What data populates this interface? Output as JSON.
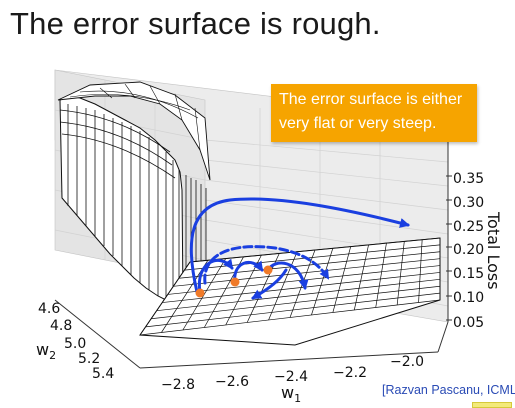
{
  "title": "The error surface is rough.",
  "callout": {
    "line1": "The error surface is either",
    "line2": "very flat or very steep."
  },
  "citation": "[Razvan Pascanu, ICML",
  "plot": {
    "z_axis": {
      "label": "Total Loss",
      "ticks": [
        "0.35",
        "0.30",
        "0.25",
        "0.20",
        "0.15",
        "0.10",
        "0.05"
      ]
    },
    "w1_axis": {
      "label": "w",
      "subscript": "1",
      "ticks": [
        "−2.8",
        "−2.6",
        "−2.4",
        "−2.2",
        "−2.0"
      ]
    },
    "w2_axis": {
      "label": "w",
      "subscript": "2",
      "ticks": [
        "4.6",
        "4.8",
        "5.0",
        "5.2",
        "5.4"
      ]
    },
    "colors": {
      "trajectory": "#1a3fe0",
      "points": "#f07a28",
      "callout": "#f6a400"
    }
  }
}
